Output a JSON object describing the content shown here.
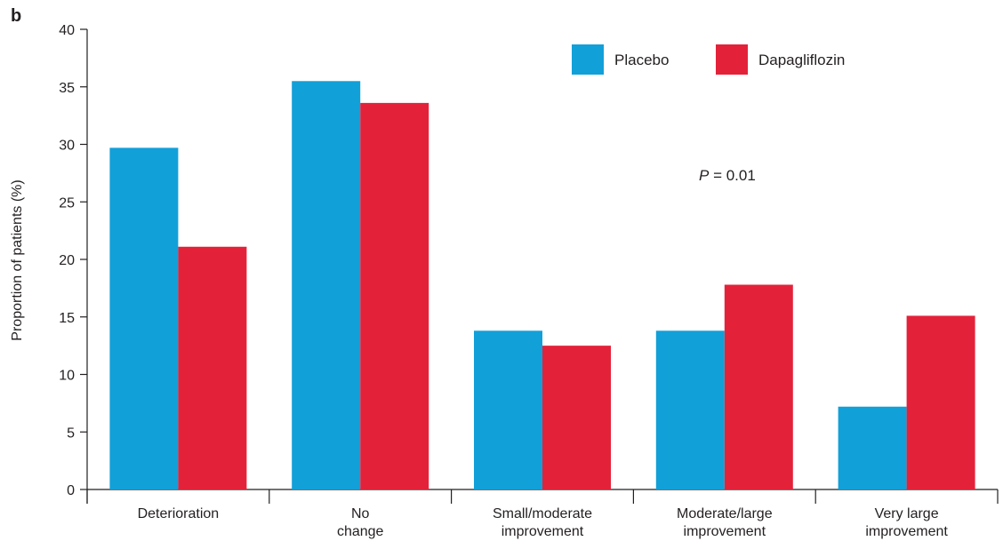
{
  "panel_label": "b",
  "colors": {
    "placebo": "#12a0d8",
    "dapagliflozin": "#e3223a",
    "axis": "#231f20"
  },
  "annotation": {
    "italic": "P",
    "rest": " = 0.01"
  },
  "chart_data": {
    "type": "bar",
    "ylabel": "Proportion of patients (%)",
    "xlabel": "",
    "ylim": [
      0,
      40
    ],
    "yticks": [
      0,
      5,
      10,
      15,
      20,
      25,
      30,
      35,
      40
    ],
    "categories": [
      [
        "Deterioration"
      ],
      [
        "No",
        "change"
      ],
      [
        "Small/moderate",
        "improvement"
      ],
      [
        "Moderate/large",
        "improvement"
      ],
      [
        "Very large",
        "improvement"
      ]
    ],
    "series": [
      {
        "name": "Placebo",
        "values": [
          29.7,
          35.5,
          13.8,
          13.8,
          7.2
        ]
      },
      {
        "name": "Dapagliflozin",
        "values": [
          21.1,
          33.6,
          12.5,
          17.8,
          15.1
        ]
      }
    ],
    "legend": "top-right",
    "grid": false
  }
}
